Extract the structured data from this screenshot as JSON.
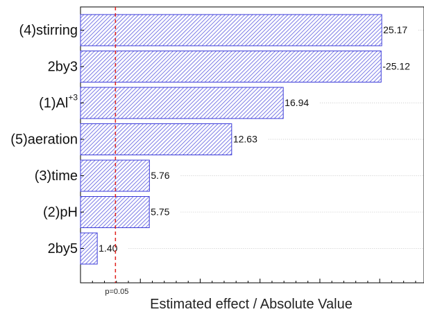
{
  "chart_data": {
    "type": "bar",
    "orientation": "horizontal",
    "categories": [
      {
        "label": "(4)stirring",
        "sup": ""
      },
      {
        "label": "2by3",
        "sup": ""
      },
      {
        "label": "(1)Al",
        "sup": "+3"
      },
      {
        "label": "(5)aeration",
        "sup": ""
      },
      {
        "label": "(3)time",
        "sup": ""
      },
      {
        "label": "(2)pH",
        "sup": ""
      },
      {
        "label": "2by5",
        "sup": ""
      }
    ],
    "values": [
      25.17,
      25.12,
      16.94,
      12.63,
      5.76,
      5.75,
      1.4
    ],
    "value_labels": [
      "25.17",
      "-25.12",
      "16.94",
      "12.63",
      "5.76",
      "5.75",
      "1.40"
    ],
    "xlabel": "Estimated effect / Absolute Value",
    "reference_line": {
      "value": 2.92,
      "label": "p=0.05",
      "color": "#e0201c"
    },
    "xlim": [
      0,
      28.7
    ],
    "bar_color": "#3a3ad8",
    "bar_fill": "#ffffff",
    "grid": "dotted row guides"
  }
}
